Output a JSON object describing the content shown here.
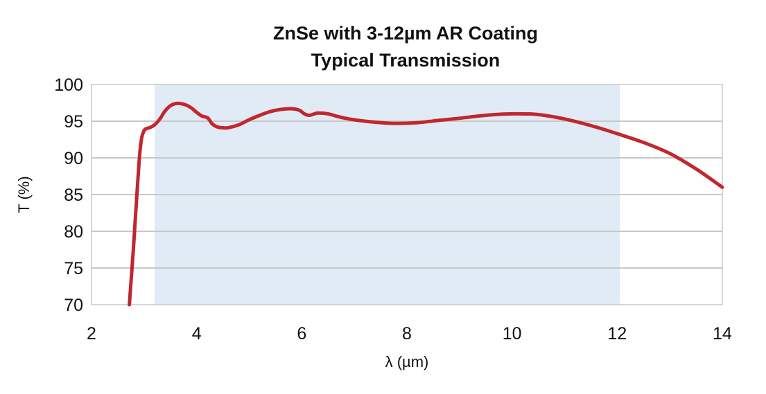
{
  "chart_data": {
    "type": "line",
    "title": [
      "ZnSe with 3-12µm AR Coating",
      "Typical Transmission"
    ],
    "xlabel": "λ (µm)",
    "ylabel": "T (%)",
    "xlim": [
      2,
      14
    ],
    "ylim": [
      70,
      100
    ],
    "xticks": [
      2,
      4,
      6,
      8,
      10,
      12,
      14
    ],
    "yticks": [
      70,
      75,
      80,
      85,
      90,
      95,
      100
    ],
    "grid": "horizontal",
    "shaded_band": {
      "x": [
        3.2,
        12.05
      ],
      "color": "#e1ebf6"
    },
    "series": [
      {
        "color": "#c1272d",
        "x": [
          2.72,
          2.8,
          2.9,
          2.95,
          3.0,
          3.05,
          3.1,
          3.2,
          3.3,
          3.4,
          3.5,
          3.6,
          3.7,
          3.8,
          3.9,
          4.0,
          4.1,
          4.2,
          4.25,
          4.3,
          4.4,
          4.5,
          4.6,
          4.8,
          5.0,
          5.2,
          5.4,
          5.6,
          5.8,
          5.95,
          6.05,
          6.15,
          6.3,
          6.5,
          6.7,
          6.9,
          7.2,
          7.5,
          7.8,
          8.2,
          8.6,
          9.0,
          9.5,
          10.0,
          10.5,
          11.0,
          11.5,
          12.0,
          12.5,
          13.0,
          13.5,
          14.0
        ],
        "y": [
          70.0,
          78.0,
          89.0,
          92.5,
          93.7,
          94.0,
          94.1,
          94.5,
          95.3,
          96.4,
          97.1,
          97.4,
          97.4,
          97.2,
          96.8,
          96.2,
          95.7,
          95.5,
          95.1,
          94.6,
          94.2,
          94.1,
          94.1,
          94.5,
          95.2,
          95.8,
          96.3,
          96.6,
          96.7,
          96.5,
          96.0,
          95.8,
          96.1,
          96.0,
          95.6,
          95.3,
          95.0,
          94.8,
          94.7,
          94.8,
          95.1,
          95.4,
          95.8,
          96.0,
          95.9,
          95.3,
          94.4,
          93.3,
          92.1,
          90.6,
          88.5,
          86.0
        ]
      }
    ]
  }
}
